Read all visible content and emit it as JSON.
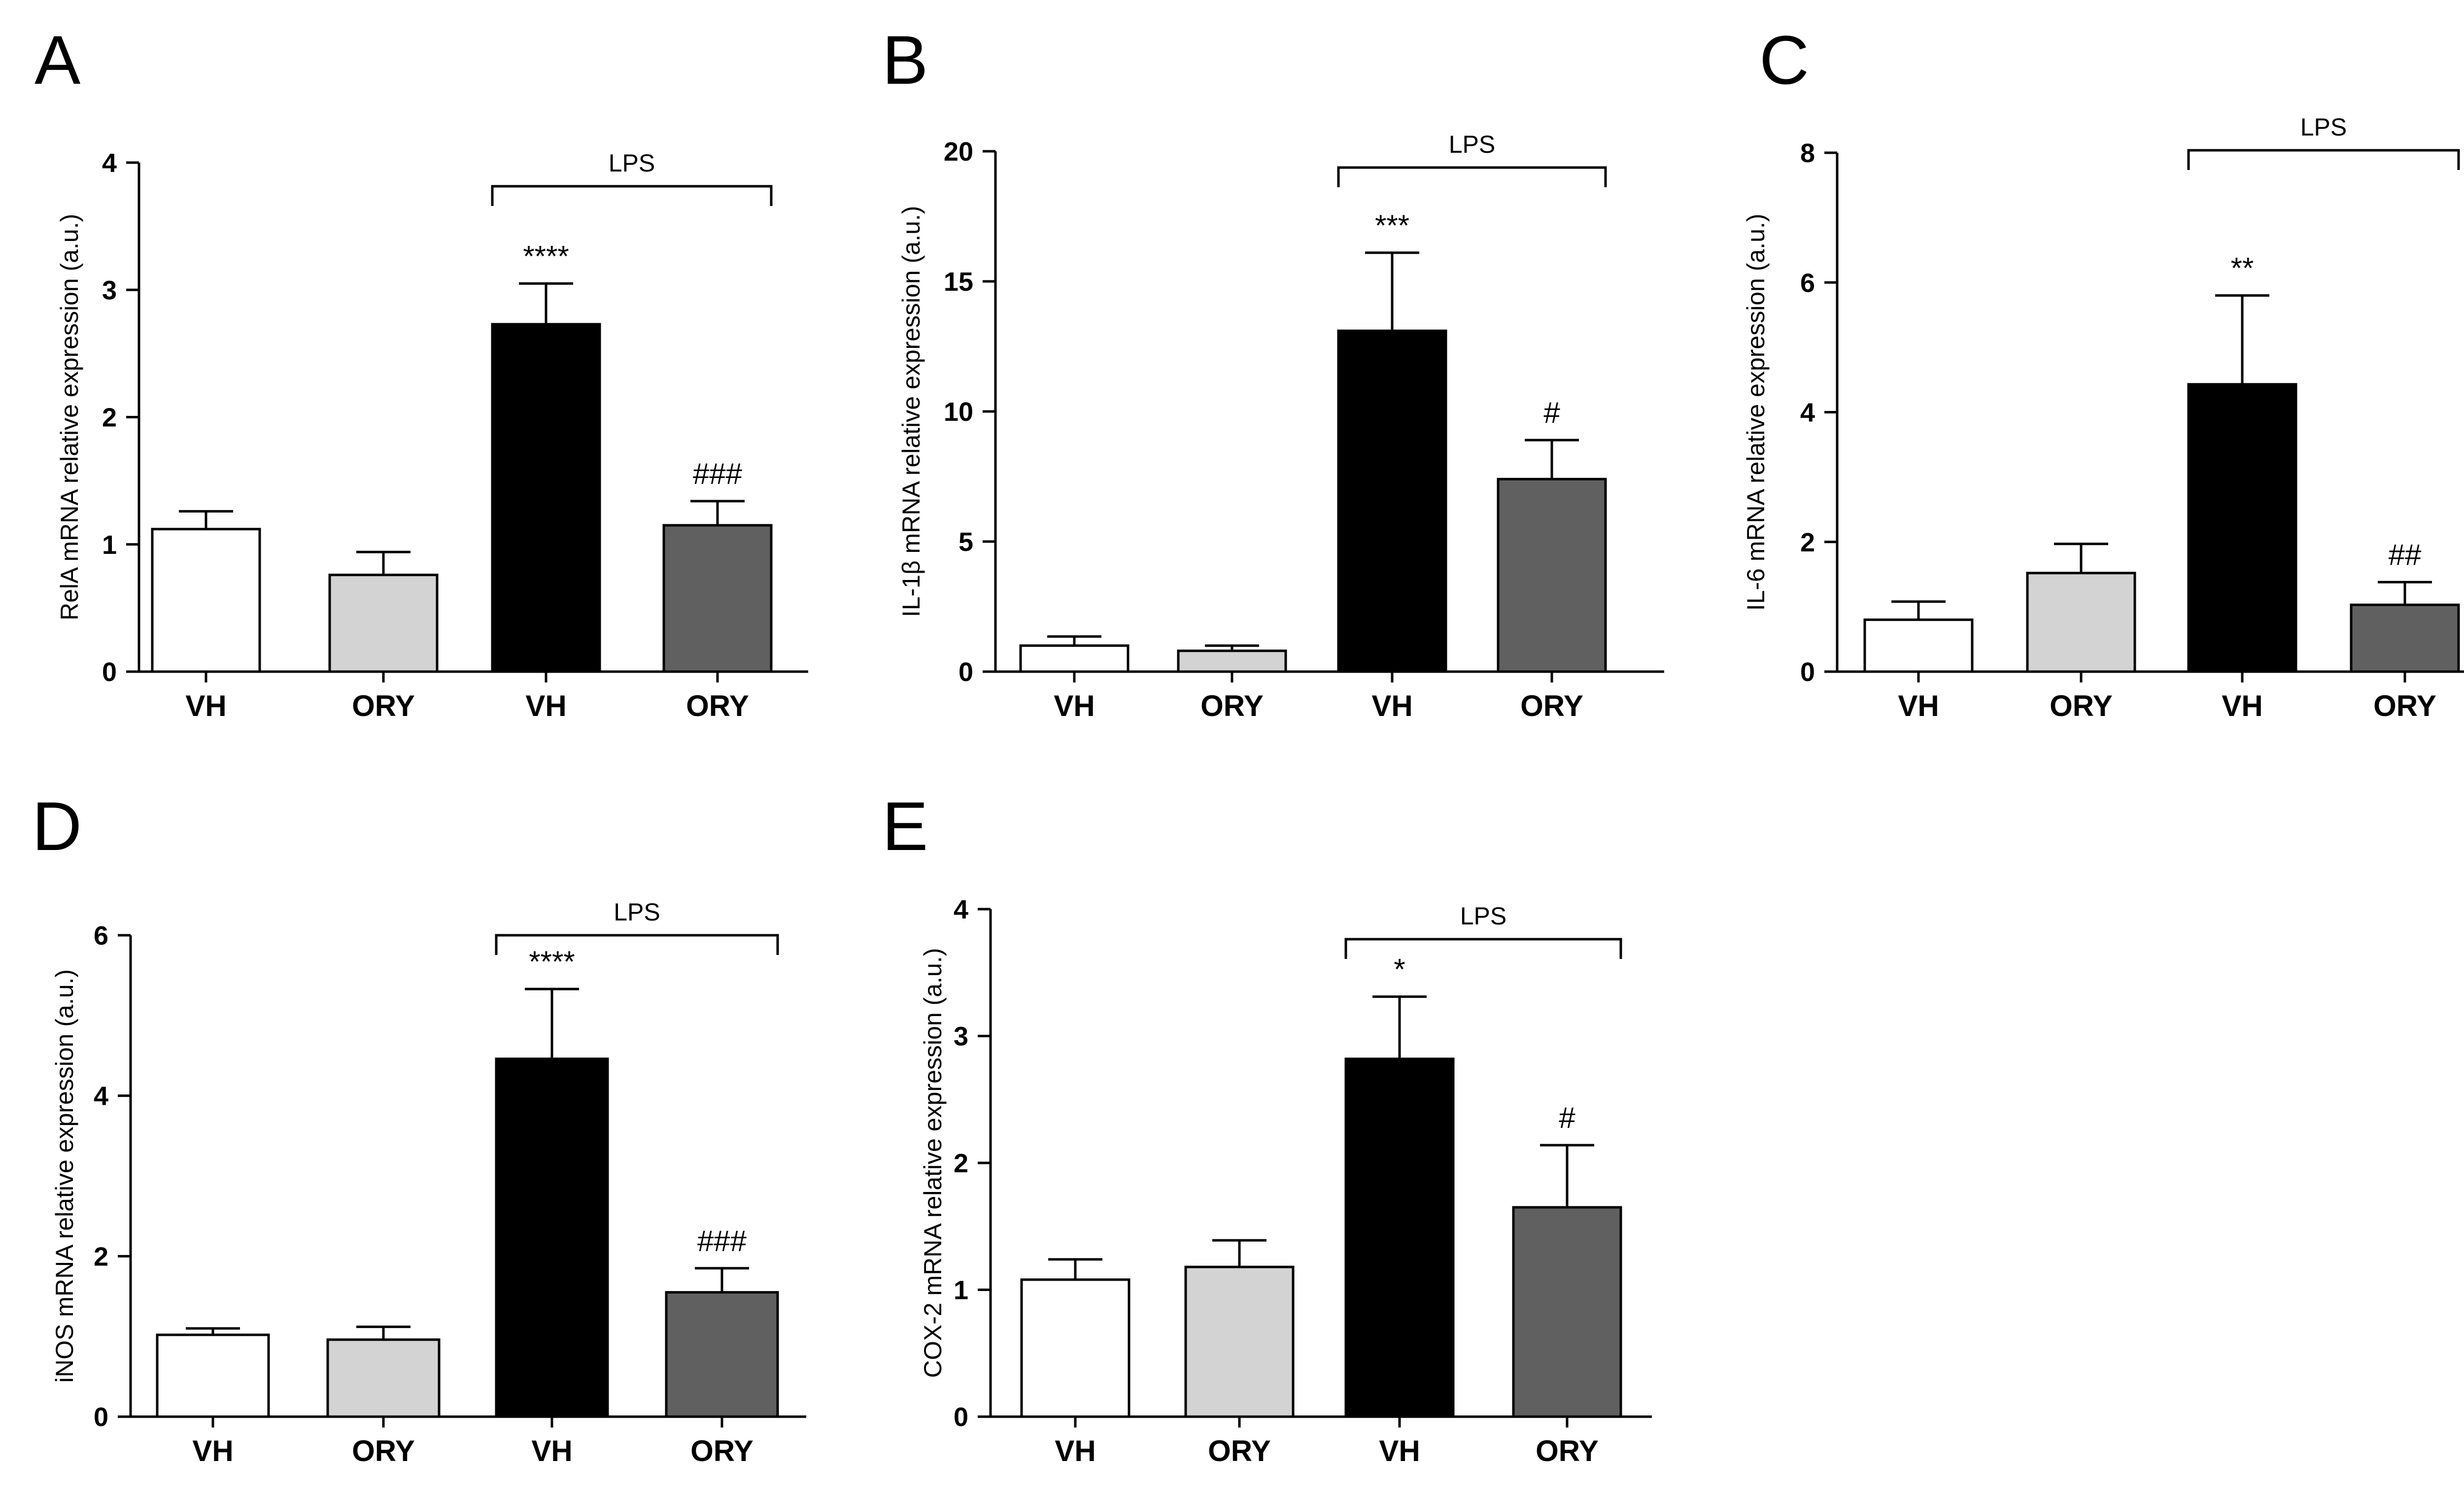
{
  "figure_title": "",
  "chart_data": [
    {
      "panel": "A",
      "type": "bar",
      "title": "",
      "xlabel": "",
      "ylabel": "RelA mRNA relative expression (a.u.)",
      "ylim": [
        0,
        4
      ],
      "yticks": [
        "0",
        "1",
        "2",
        "3",
        "4"
      ],
      "categories": [
        "VH",
        "ORY",
        "VH",
        "ORY"
      ],
      "values": [
        1.12,
        0.76,
        2.73,
        1.15
      ],
      "errors": [
        0.14,
        0.18,
        0.32,
        0.19
      ],
      "colors": [
        "#ffffff",
        "#d3d3d3",
        "#000000",
        "#606060"
      ],
      "significance": [
        "",
        "",
        "****",
        "###"
      ],
      "bracket_label": "LPS",
      "bracket_over": [
        2,
        3
      ]
    },
    {
      "panel": "B",
      "type": "bar",
      "title": "",
      "xlabel": "",
      "ylabel": "IL-1β mRNA relative expression (a.u.)",
      "ylim": [
        0,
        20
      ],
      "yticks": [
        "0",
        "5",
        "10",
        "15",
        "20"
      ],
      "categories": [
        "VH",
        "ORY",
        "VH",
        "ORY"
      ],
      "values": [
        1.0,
        0.8,
        13.1,
        7.4
      ],
      "errors": [
        0.35,
        0.2,
        3.0,
        1.5
      ],
      "colors": [
        "#ffffff",
        "#d3d3d3",
        "#000000",
        "#606060"
      ],
      "significance": [
        "",
        "",
        "***",
        "#"
      ],
      "bracket_label": "LPS",
      "bracket_over": [
        2,
        3
      ]
    },
    {
      "panel": "C",
      "type": "bar",
      "title": "",
      "xlabel": "",
      "ylabel": "IL-6 mRNA relative expression (a.u.)",
      "ylim": [
        0,
        8
      ],
      "yticks": [
        "0",
        "2",
        "4",
        "6",
        "8"
      ],
      "categories": [
        "VH",
        "ORY",
        "VH",
        "ORY"
      ],
      "values": [
        0.8,
        1.52,
        4.43,
        1.03
      ],
      "errors": [
        0.28,
        0.45,
        1.37,
        0.35
      ],
      "colors": [
        "#ffffff",
        "#d3d3d3",
        "#000000",
        "#606060"
      ],
      "significance": [
        "",
        "",
        "**",
        "##"
      ],
      "bracket_label": "LPS",
      "bracket_over": [
        2,
        3
      ]
    },
    {
      "panel": "D",
      "type": "bar",
      "title": "",
      "xlabel": "",
      "ylabel": "iNOS mRNA relative expression (a.u.)",
      "ylim": [
        0,
        6
      ],
      "yticks": [
        "0",
        "2",
        "4",
        "6"
      ],
      "categories": [
        "VH",
        "ORY",
        "VH",
        "ORY"
      ],
      "values": [
        1.02,
        0.96,
        4.46,
        1.55
      ],
      "errors": [
        0.08,
        0.16,
        0.87,
        0.3
      ],
      "colors": [
        "#ffffff",
        "#d3d3d3",
        "#000000",
        "#606060"
      ],
      "significance": [
        "",
        "",
        "****",
        "###"
      ],
      "bracket_label": "LPS",
      "bracket_over": [
        2,
        3
      ]
    },
    {
      "panel": "E",
      "type": "bar",
      "title": "",
      "xlabel": "",
      "ylabel": "COX-2 mRNA relative expression (a.u.)",
      "ylim": [
        0,
        4
      ],
      "yticks": [
        "0",
        "1",
        "2",
        "3",
        "4"
      ],
      "categories": [
        "VH",
        "ORY",
        "VH",
        "ORY"
      ],
      "values": [
        1.08,
        1.18,
        2.82,
        1.65
      ],
      "errors": [
        0.16,
        0.21,
        0.49,
        0.49
      ],
      "colors": [
        "#ffffff",
        "#d3d3d3",
        "#000000",
        "#606060"
      ],
      "significance": [
        "",
        "",
        "*",
        "#"
      ],
      "bracket_label": "LPS",
      "bracket_over": [
        2,
        3
      ]
    }
  ]
}
